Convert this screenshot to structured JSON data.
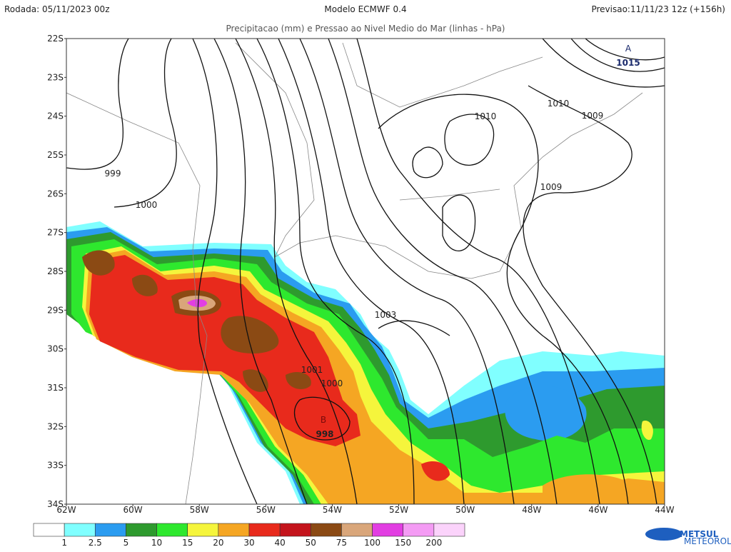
{
  "header": {
    "run": "Rodada: 05/11/2023 00z",
    "model": "Modelo ECMWF 0.4",
    "forecast": "Previsao:11/11/23 12z (+156h)"
  },
  "subtitle": "Precipitacao (mm) e Pressao ao Nivel Medio do Mar (linhas - hPa)",
  "lat_labels": [
    "22S",
    "23S",
    "24S",
    "25S",
    "26S",
    "27S",
    "28S",
    "29S",
    "30S",
    "31S",
    "32S",
    "33S",
    "34S"
  ],
  "lon_labels": [
    "62W",
    "60W",
    "58W",
    "56W",
    "54W",
    "52W",
    "50W",
    "48W",
    "46W",
    "44W"
  ],
  "isobar_labels": [
    "999",
    "1000",
    "1003",
    "1001",
    "1000",
    "1010",
    "1010",
    "1009",
    "1009"
  ],
  "high_center": {
    "letter": "A",
    "value": "1015"
  },
  "low_center": {
    "letter": "B",
    "value": "998"
  },
  "legend": {
    "colors": [
      "#ffffff",
      "#80ffff",
      "#2b9cf0",
      "#2e9a2e",
      "#2ee82e",
      "#f5f53c",
      "#f5a623",
      "#e82a1c",
      "#c4141c",
      "#8b4a14",
      "#d9a67a",
      "#e23ee2",
      "#f49bf4",
      "#fbd3fb"
    ],
    "labels": [
      1,
      2.5,
      5,
      10,
      15,
      20,
      30,
      40,
      50,
      75,
      100,
      150,
      200
    ]
  },
  "logo": {
    "name": "METSUL",
    "tagline": "METEOROLOGIA"
  }
}
